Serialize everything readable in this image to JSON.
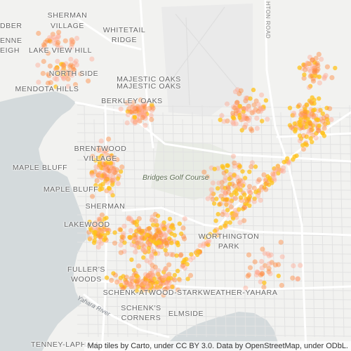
{
  "map": {
    "colors": {
      "land": "#f2f2f0",
      "water": "#d4dadc",
      "roads": "#ffffff",
      "minor_roads": "#e4e4e4",
      "dots": "#ff8a3d",
      "dots_hot": "#ffc21a",
      "dots_light": "#ffab95"
    },
    "neighborhoods": [
      {
        "text": "SHERMAN"
      },
      {
        "text": "VILLAGE"
      },
      {
        "text": "WHITETAIL"
      },
      {
        "text": "RIDGE"
      },
      {
        "text": "DBER"
      },
      {
        "text": "ENNE"
      },
      {
        "text": "EIGH"
      },
      {
        "text": "LAKE VIEW HILL"
      },
      {
        "text": "NORTH SIDE"
      },
      {
        "text": "MAJESTIC OAKS"
      },
      {
        "text": "MAJESTIC OAKS"
      },
      {
        "text": "MENDOTA HILLS"
      },
      {
        "text": "BERKLEY OAKS"
      },
      {
        "text": "BRENTWOOD"
      },
      {
        "text": "VILLAGE"
      },
      {
        "text": "MAPLE BLUFF"
      },
      {
        "text": "MAPLE BLUFF"
      },
      {
        "text": "SHERMAN"
      },
      {
        "text": "LAKEWOOD"
      },
      {
        "text": "WORTHINGTON"
      },
      {
        "text": "PARK"
      },
      {
        "text": "FULLER'S"
      },
      {
        "text": "WOODS"
      },
      {
        "text": "SCHENK-ATWOOD-STARKWEATHER-YAHARA"
      },
      {
        "text": "SCHENK'S"
      },
      {
        "text": "CORNERS"
      },
      {
        "text": "ELMSIDE"
      },
      {
        "text": "TENNEY-LAPHAM"
      }
    ],
    "poi_label": "Bridges Golf Course",
    "water_label": "Yahara River",
    "road_label": "HTON ROAD",
    "attribution": "Map tiles by Carto, under CC BY 3.0. Data by OpenStreetMap, under ODbL."
  }
}
